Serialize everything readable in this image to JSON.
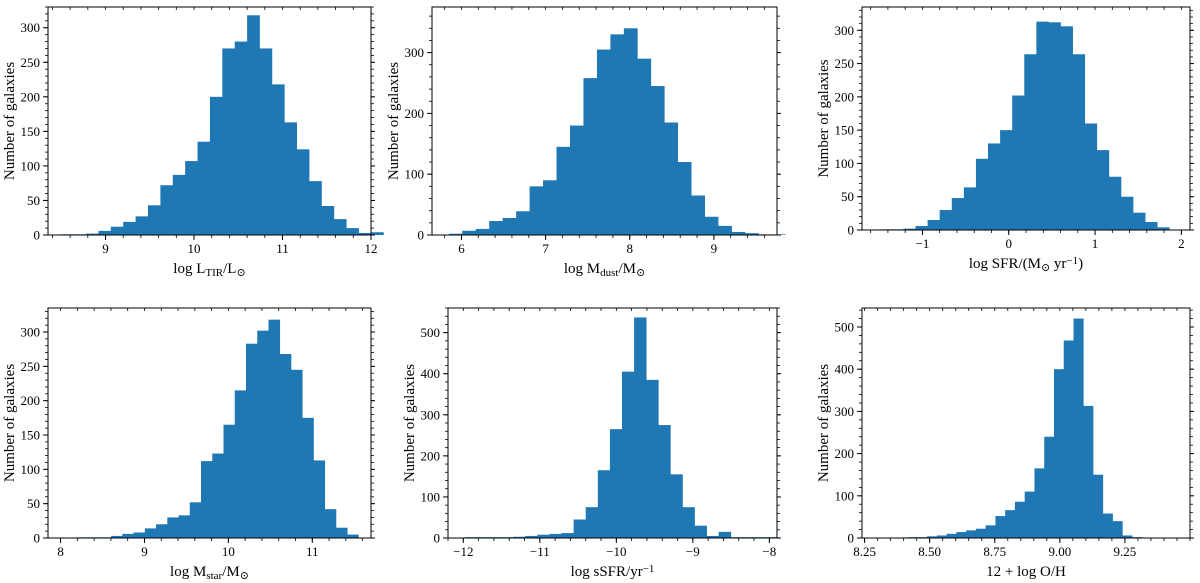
{
  "figure": {
    "title": "",
    "layout": "2x3 grid of histograms"
  },
  "chart_data": [
    {
      "type": "bar",
      "title": "",
      "xlabel": "log L_TIR/L_⊙",
      "xlabel_parts": [
        [
          "log L",
          "n"
        ],
        [
          "TIR",
          "sub"
        ],
        [
          "/L",
          "n"
        ],
        [
          "⊙",
          "sub"
        ]
      ],
      "ylabel": "Number of galaxies",
      "xlim": [
        8.35,
        12.0
      ],
      "ylim": [
        0,
        330
      ],
      "xticks": [
        9,
        10,
        11,
        12
      ],
      "xtick_labels": [
        "9",
        "10",
        "11",
        "12"
      ],
      "yticks": [
        0,
        50,
        100,
        150,
        200,
        250,
        300
      ],
      "ytick_labels": [
        "0",
        "50",
        "100",
        "150",
        "200",
        "250",
        "300"
      ],
      "bin_start": 8.5,
      "bin_width": 0.14,
      "values": [
        1,
        1,
        2,
        6,
        12,
        19,
        27,
        43,
        72,
        87,
        107,
        135,
        200,
        270,
        280,
        318,
        270,
        218,
        163,
        124,
        78,
        42,
        23,
        10,
        3,
        4
      ],
      "color": "#1f77b4",
      "grid": false
    },
    {
      "type": "bar",
      "title": "",
      "xlabel": "log M_dust/M_⊙",
      "xlabel_parts": [
        [
          "log M",
          "n"
        ],
        [
          "dust",
          "sub"
        ],
        [
          "/M",
          "n"
        ],
        [
          "⊙",
          "sub"
        ]
      ],
      "ylabel": "Number of galaxies",
      "xlim": [
        5.65,
        9.75
      ],
      "ylim": [
        0,
        375
      ],
      "xticks": [
        6,
        7,
        8,
        9
      ],
      "xtick_labels": [
        "6",
        "7",
        "8",
        "9"
      ],
      "yticks": [
        0,
        100,
        200,
        300
      ],
      "ytick_labels": [
        "0",
        "100",
        "200",
        "300"
      ],
      "bin_start": 5.85,
      "bin_width": 0.16,
      "values": [
        2,
        7,
        10,
        23,
        28,
        39,
        80,
        90,
        145,
        180,
        258,
        305,
        330,
        340,
        290,
        245,
        185,
        120,
        65,
        30,
        15,
        5,
        3,
        1,
        1
      ],
      "color": "#1f77b4",
      "grid": false
    },
    {
      "type": "bar",
      "title": "",
      "xlabel": "log SFR/(M_⊙ yr^-1)",
      "xlabel_parts": [
        [
          "log SFR/(M",
          "n"
        ],
        [
          "⊙",
          "sub"
        ],
        [
          " yr",
          "n"
        ],
        [
          "−1",
          "sup"
        ],
        [
          ")",
          "n"
        ]
      ],
      "ylabel": "Number of galaxies",
      "xlim": [
        -1.7,
        2.1
      ],
      "ylim": [
        0,
        335
      ],
      "xticks": [
        -1,
        0,
        1,
        2
      ],
      "xtick_labels": [
        "−1",
        "0",
        "1",
        "2"
      ],
      "yticks": [
        0,
        50,
        100,
        150,
        200,
        250,
        300
      ],
      "ytick_labels": [
        "0",
        "50",
        "100",
        "150",
        "200",
        "250",
        "300"
      ],
      "bin_start": -1.5,
      "bin_width": 0.14,
      "values": [
        1,
        1,
        2,
        6,
        15,
        30,
        48,
        64,
        107,
        130,
        150,
        202,
        264,
        313,
        312,
        306,
        264,
        160,
        120,
        80,
        50,
        26,
        12,
        4
      ],
      "color": "#1f77b4",
      "grid": false
    },
    {
      "type": "bar",
      "title": "",
      "xlabel": "log M_star/M_⊙",
      "xlabel_parts": [
        [
          "log M",
          "n"
        ],
        [
          "star",
          "sub"
        ],
        [
          "/M",
          "n"
        ],
        [
          "⊙",
          "sub"
        ]
      ],
      "ylabel": "Number of galaxies",
      "xlim": [
        7.85,
        11.7
      ],
      "ylim": [
        0,
        335
      ],
      "xticks": [
        8,
        9,
        10,
        11
      ],
      "xtick_labels": [
        "8",
        "9",
        "10",
        "11"
      ],
      "yticks": [
        0,
        50,
        100,
        150,
        200,
        250,
        300
      ],
      "ytick_labels": [
        "0",
        "50",
        "100",
        "150",
        "200",
        "250",
        "300"
      ],
      "bin_start": 8.2,
      "bin_width": 0.134,
      "values": [
        1,
        1,
        1,
        3,
        6,
        8,
        14,
        20,
        30,
        33,
        52,
        112,
        123,
        165,
        215,
        283,
        302,
        318,
        268,
        245,
        175,
        113,
        42,
        15,
        5
      ],
      "color": "#1f77b4",
      "grid": false
    },
    {
      "type": "bar",
      "title": "",
      "xlabel": "log sSFR/yr^-1",
      "xlabel_parts": [
        [
          "log sSFR/yr",
          "n"
        ],
        [
          "−1",
          "sup"
        ]
      ],
      "ylabel": "Number of galaxies",
      "xlim": [
        -12.2,
        -7.9
      ],
      "ylim": [
        0,
        560
      ],
      "xticks": [
        -12,
        -11,
        -10,
        -9,
        -8
      ],
      "xtick_labels": [
        "−12",
        "−11",
        "−10",
        "−9",
        "−8"
      ],
      "yticks": [
        0,
        100,
        200,
        300,
        400,
        500
      ],
      "ytick_labels": [
        "0",
        "100",
        "200",
        "300",
        "400",
        "500"
      ],
      "bin_start": -11.98,
      "bin_width": 0.158,
      "values": [
        2,
        2,
        2,
        2,
        3,
        5,
        8,
        10,
        12,
        45,
        75,
        165,
        265,
        405,
        537,
        385,
        275,
        155,
        75,
        30,
        5,
        15,
        2,
        2,
        2,
        2
      ],
      "color": "#1f77b4",
      "grid": false
    },
    {
      "type": "bar",
      "title": "",
      "xlabel": "12 + log O/H",
      "xlabel_parts": [
        [
          "12 + log O/H",
          "n"
        ]
      ],
      "ylabel": "Number of galaxies",
      "xlim": [
        8.24,
        9.5
      ],
      "ylim": [
        0,
        545
      ],
      "xticks": [
        8.25,
        8.5,
        8.75,
        9.0,
        9.25
      ],
      "xtick_labels": [
        "8.25",
        "8.50",
        "8.75",
        "9.00",
        "9.25"
      ],
      "yticks": [
        0,
        100,
        200,
        300,
        400,
        500
      ],
      "ytick_labels": [
        "0",
        "100",
        "200",
        "300",
        "400",
        "500"
      ],
      "bin_start": 8.415,
      "bin_width": 0.0375,
      "values": [
        2,
        2,
        4,
        6,
        10,
        14,
        18,
        22,
        30,
        52,
        66,
        86,
        110,
        165,
        240,
        400,
        468,
        520,
        313,
        150,
        58,
        40,
        6,
        2
      ],
      "color": "#1f77b4",
      "grid": false
    }
  ]
}
